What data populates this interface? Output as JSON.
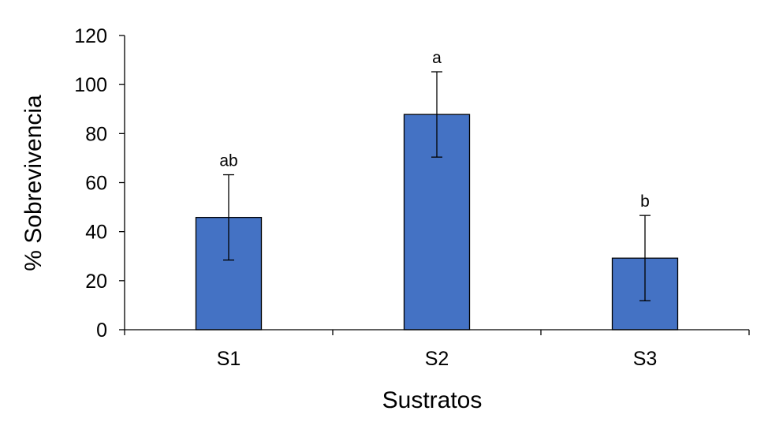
{
  "chart_data": {
    "type": "bar",
    "title": "",
    "xlabel": "Sustratos",
    "ylabel": "% Sobrevivencia",
    "categories": [
      "S1",
      "S2",
      "S3"
    ],
    "values": [
      45.8,
      87.8,
      29.2
    ],
    "errors": [
      17.4,
      17.4,
      17.4
    ],
    "annotations": [
      "ab",
      "a",
      "b"
    ],
    "ylim": [
      0,
      120
    ],
    "yticks": [
      0,
      20,
      40,
      60,
      80,
      100,
      120
    ],
    "grid": false,
    "bar_color": "#4472C4",
    "bar_edge_color": "#000000"
  }
}
